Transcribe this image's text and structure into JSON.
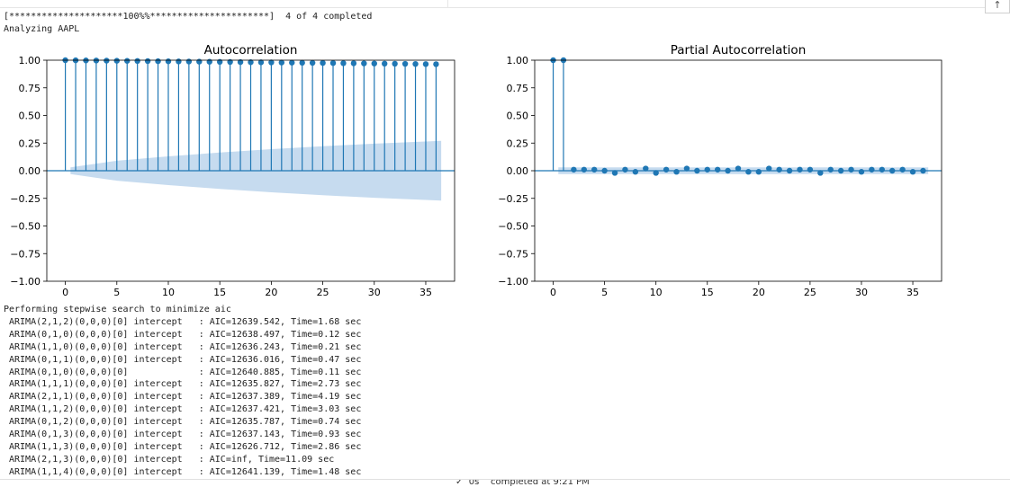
{
  "output": {
    "progress_line": "[*********************100%%**********************]  4 of 4 completed",
    "analyzing_line": "Analyzing AAPL",
    "stepwise_header": "Performing stepwise search to minimize aic",
    "arima_log": [
      "ARIMA(2,1,2)(0,0,0)[0] intercept   : AIC=12639.542, Time=1.68 sec",
      "ARIMA(0,1,0)(0,0,0)[0] intercept   : AIC=12638.497, Time=0.12 sec",
      "ARIMA(1,1,0)(0,0,0)[0] intercept   : AIC=12636.243, Time=0.21 sec",
      "ARIMA(0,1,1)(0,0,0)[0] intercept   : AIC=12636.016, Time=0.47 sec",
      "ARIMA(0,1,0)(0,0,0)[0]             : AIC=12640.885, Time=0.11 sec",
      "ARIMA(1,1,1)(0,0,0)[0] intercept   : AIC=12635.827, Time=2.73 sec",
      "ARIMA(2,1,1)(0,0,0)[0] intercept   : AIC=12637.389, Time=4.19 sec",
      "ARIMA(1,1,2)(0,0,0)[0] intercept   : AIC=12637.421, Time=3.03 sec",
      "ARIMA(0,1,2)(0,0,0)[0] intercept   : AIC=12635.787, Time=0.74 sec",
      "ARIMA(0,1,3)(0,0,0)[0] intercept   : AIC=12637.143, Time=0.93 sec",
      "ARIMA(1,1,3)(0,0,0)[0] intercept   : AIC=12626.712, Time=2.86 sec",
      "ARIMA(2,1,3)(0,0,0)[0] intercept   : AIC=inf, Time=11.09 sec",
      "ARIMA(1,1,4)(0,0,0)[0] intercept   : AIC=12641.139, Time=1.48 sec"
    ]
  },
  "status_bar": {
    "text": "✓  0s    completed at 9:21 PM"
  },
  "toolbar": {
    "scroll_top_icon": "arrow-up-icon",
    "scroll_top_glyph": "↑"
  },
  "colors": {
    "series": "#1f77b4",
    "band": "#c6dbef"
  },
  "chart_data": [
    {
      "type": "bar",
      "title": "Autocorrelation",
      "xlabel": "",
      "ylabel": "",
      "xlim": [
        -1.8,
        37.8
      ],
      "ylim": [
        -1.0,
        1.0
      ],
      "xticks": [
        "0",
        "5",
        "10",
        "15",
        "20",
        "25",
        "30",
        "35"
      ],
      "xtick_values": [
        0,
        5,
        10,
        15,
        20,
        25,
        30,
        35
      ],
      "yticks": [
        "1.00",
        "0.75",
        "0.50",
        "0.25",
        "0.00",
        "−0.25",
        "−0.50",
        "−0.75",
        "−1.00"
      ],
      "ytick_values": [
        1.0,
        0.75,
        0.5,
        0.25,
        0.0,
        -0.25,
        -0.5,
        -0.75,
        -1.0
      ],
      "lags": [
        0,
        1,
        2,
        3,
        4,
        5,
        6,
        7,
        8,
        9,
        10,
        11,
        12,
        13,
        14,
        15,
        16,
        17,
        18,
        19,
        20,
        21,
        22,
        23,
        24,
        25,
        26,
        27,
        28,
        29,
        30,
        31,
        32,
        33,
        34,
        35,
        36
      ],
      "values": [
        1.0,
        0.999,
        0.998,
        0.997,
        0.996,
        0.995,
        0.994,
        0.993,
        0.992,
        0.991,
        0.99,
        0.989,
        0.988,
        0.987,
        0.986,
        0.985,
        0.984,
        0.983,
        0.982,
        0.981,
        0.98,
        0.979,
        0.978,
        0.977,
        0.976,
        0.975,
        0.974,
        0.973,
        0.972,
        0.971,
        0.97,
        0.969,
        0.968,
        0.967,
        0.966,
        0.965,
        0.964
      ],
      "confidence_band": {
        "lags": [
          0.5,
          5,
          10,
          15,
          20,
          25,
          30,
          36.5
        ],
        "upper": [
          0.03,
          0.09,
          0.13,
          0.165,
          0.195,
          0.222,
          0.245,
          0.27
        ],
        "lower": [
          -0.03,
          -0.09,
          -0.13,
          -0.165,
          -0.195,
          -0.222,
          -0.245,
          -0.27
        ]
      },
      "grid": false
    },
    {
      "type": "bar",
      "title": "Partial Autocorrelation",
      "xlabel": "",
      "ylabel": "",
      "xlim": [
        -1.8,
        37.8
      ],
      "ylim": [
        -1.0,
        1.0
      ],
      "xticks": [
        "0",
        "5",
        "10",
        "15",
        "20",
        "25",
        "30",
        "35"
      ],
      "xtick_values": [
        0,
        5,
        10,
        15,
        20,
        25,
        30,
        35
      ],
      "yticks": [
        "1.00",
        "0.75",
        "0.50",
        "0.25",
        "0.00",
        "−0.25",
        "−0.50",
        "−0.75",
        "−1.00"
      ],
      "ytick_values": [
        1.0,
        0.75,
        0.5,
        0.25,
        0.0,
        -0.25,
        -0.5,
        -0.75,
        -1.0
      ],
      "lags": [
        0,
        1,
        2,
        3,
        4,
        5,
        6,
        7,
        8,
        9,
        10,
        11,
        12,
        13,
        14,
        15,
        16,
        17,
        18,
        19,
        20,
        21,
        22,
        23,
        24,
        25,
        26,
        27,
        28,
        29,
        30,
        31,
        32,
        33,
        34,
        35,
        36
      ],
      "values": [
        1.0,
        1.0,
        0.01,
        0.01,
        0.01,
        0.0,
        -0.02,
        0.01,
        -0.01,
        0.02,
        -0.02,
        0.01,
        -0.01,
        0.02,
        0.0,
        0.01,
        0.01,
        0.0,
        0.02,
        -0.01,
        -0.01,
        0.02,
        0.01,
        0.0,
        0.01,
        0.01,
        -0.02,
        0.01,
        0.0,
        0.01,
        -0.01,
        0.01,
        0.01,
        0.0,
        0.01,
        -0.01,
        0.0
      ],
      "confidence_band": {
        "lags": [
          0.5,
          36.5
        ],
        "upper": [
          0.03,
          0.03
        ],
        "lower": [
          -0.03,
          -0.03
        ]
      },
      "grid": false
    }
  ]
}
